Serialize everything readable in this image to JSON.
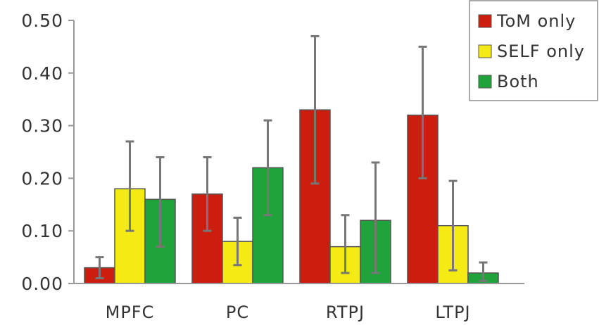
{
  "chart_data": {
    "type": "bar",
    "categories": [
      "MPFC",
      "PC",
      "RTPJ",
      "LTPJ"
    ],
    "series": [
      {
        "name": "ToM only",
        "color": "#cc1e0e",
        "values": [
          0.03,
          0.17,
          0.33,
          0.32
        ],
        "err_low": [
          0.01,
          0.1,
          0.19,
          0.2
        ],
        "err_high": [
          0.05,
          0.24,
          0.47,
          0.45
        ]
      },
      {
        "name": "SELF only",
        "color": "#f4ea14",
        "values": [
          0.18,
          0.08,
          0.07,
          0.11
        ],
        "err_low": [
          0.1,
          0.035,
          0.02,
          0.025
        ],
        "err_high": [
          0.27,
          0.125,
          0.13,
          0.195
        ]
      },
      {
        "name": "Both",
        "color": "#1fa33a",
        "values": [
          0.16,
          0.22,
          0.12,
          0.02
        ],
        "err_low": [
          0.07,
          0.13,
          0.02,
          0.005
        ],
        "err_high": [
          0.24,
          0.31,
          0.23,
          0.04
        ]
      }
    ],
    "ylim": [
      0,
      0.5
    ],
    "yticks": [
      "0.00",
      "0.10",
      "0.20",
      "0.30",
      "0.40",
      "0.50"
    ],
    "legend_position": "top-right",
    "grid": false
  }
}
